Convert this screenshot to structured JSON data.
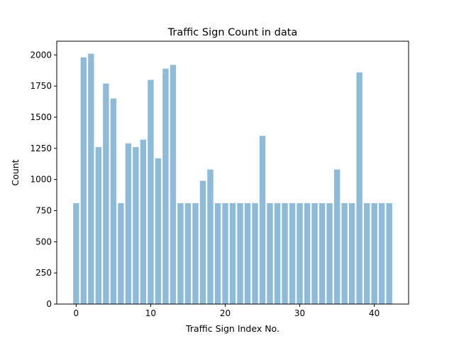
{
  "chart_data": {
    "type": "bar",
    "title": "Traffic Sign Count in data",
    "xlabel": "Traffic Sign Index No.",
    "ylabel": "Count",
    "x": [
      0,
      1,
      2,
      3,
      4,
      5,
      6,
      7,
      8,
      9,
      10,
      11,
      12,
      13,
      14,
      15,
      16,
      17,
      18,
      19,
      20,
      21,
      22,
      23,
      24,
      25,
      26,
      27,
      28,
      29,
      30,
      31,
      32,
      33,
      34,
      35,
      36,
      37,
      38,
      39,
      40,
      41,
      42
    ],
    "values": [
      810,
      1980,
      2010,
      1260,
      1770,
      1650,
      810,
      1290,
      1260,
      1320,
      1800,
      1170,
      1890,
      1920,
      810,
      810,
      810,
      990,
      1080,
      810,
      810,
      810,
      810,
      810,
      810,
      1350,
      810,
      810,
      810,
      810,
      810,
      810,
      810,
      810,
      810,
      1080,
      810,
      810,
      1860,
      810,
      810,
      810,
      810
    ],
    "xlim": [
      -2.6,
      44.6
    ],
    "ylim": [
      0,
      2110
    ],
    "xticks": [
      0,
      10,
      20,
      30,
      40
    ],
    "yticks": [
      0,
      250,
      500,
      750,
      1000,
      1250,
      1500,
      1750,
      2000
    ],
    "bar_color": "#8fbbda",
    "grid": false,
    "legend": false
  }
}
